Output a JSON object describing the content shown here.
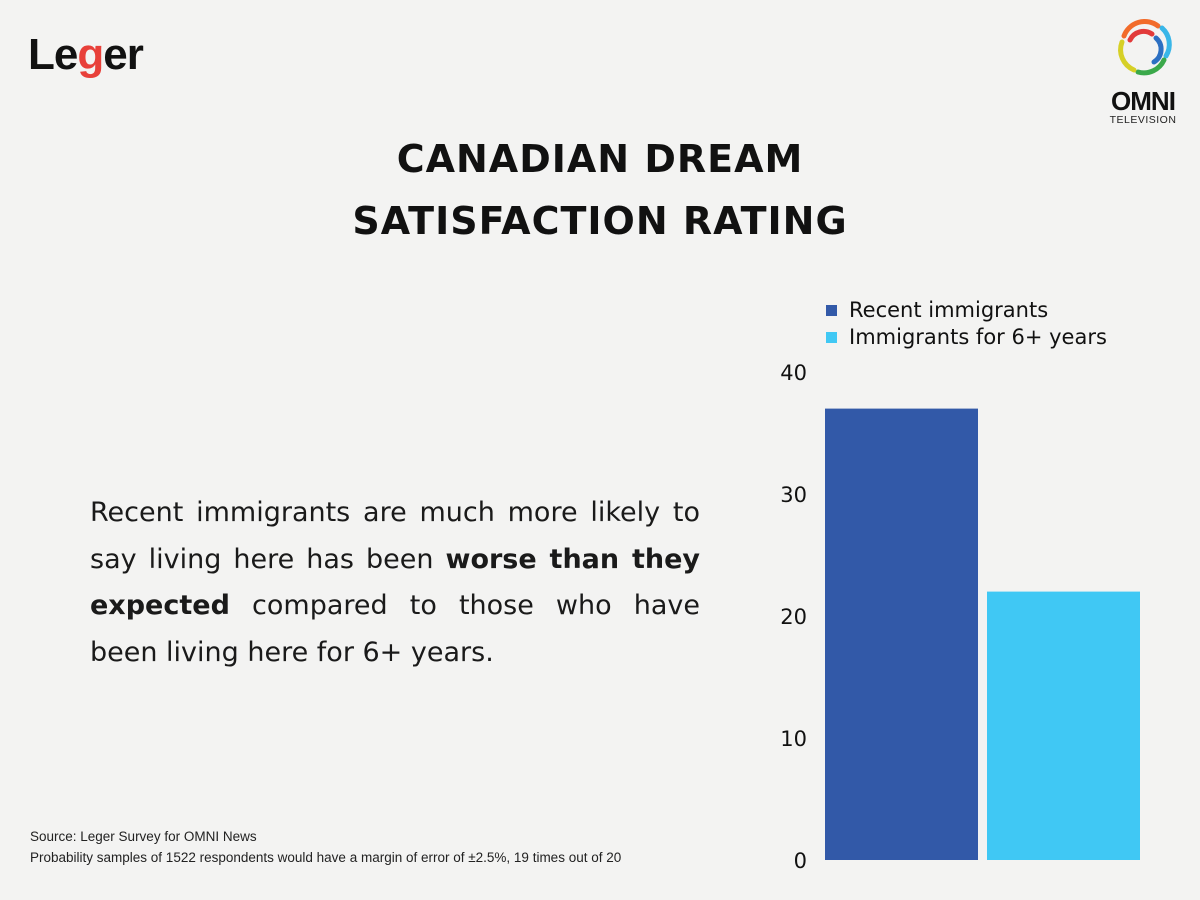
{
  "branding": {
    "left_logo": {
      "text_before": "Le",
      "text_accent": "g",
      "text_after": "er",
      "accent_color": "#e8403a"
    },
    "right_logo": {
      "name": "OMNI",
      "subtitle": "TELEVISION"
    }
  },
  "title_lines": [
    "CANADIAN DREAM",
    "SATISFACTION RATING"
  ],
  "body": {
    "part1": "Recent immigrants are much more likely to say living here has been ",
    "bold": "worse than they expected",
    "part2": " compared to those who have been living here for 6+ years."
  },
  "source": {
    "line1": "Source: Leger Survey for OMNI News",
    "line2": "Probability samples of 1522 respondents would have a margin of error of ±2.5%, 19 times out of 20"
  },
  "chart_data": {
    "type": "bar",
    "title": "Canadian Dream Satisfaction Rating",
    "categories": [
      "Recent immigrants",
      "Immigrants for 6+ years"
    ],
    "series": [
      {
        "name": "Recent immigrants",
        "values": [
          37
        ],
        "color": "#3259a8"
      },
      {
        "name": "Immigrants for 6+ years",
        "values": [
          22
        ],
        "color": "#40c8f4"
      }
    ],
    "xlabel": "",
    "ylabel": "",
    "ylim": [
      0,
      40
    ],
    "yticks": [
      0,
      10,
      20,
      30,
      40
    ],
    "ytick_labels": [
      "0",
      "10",
      "20",
      "30",
      "40"
    ],
    "grid": false,
    "legend": "top"
  }
}
